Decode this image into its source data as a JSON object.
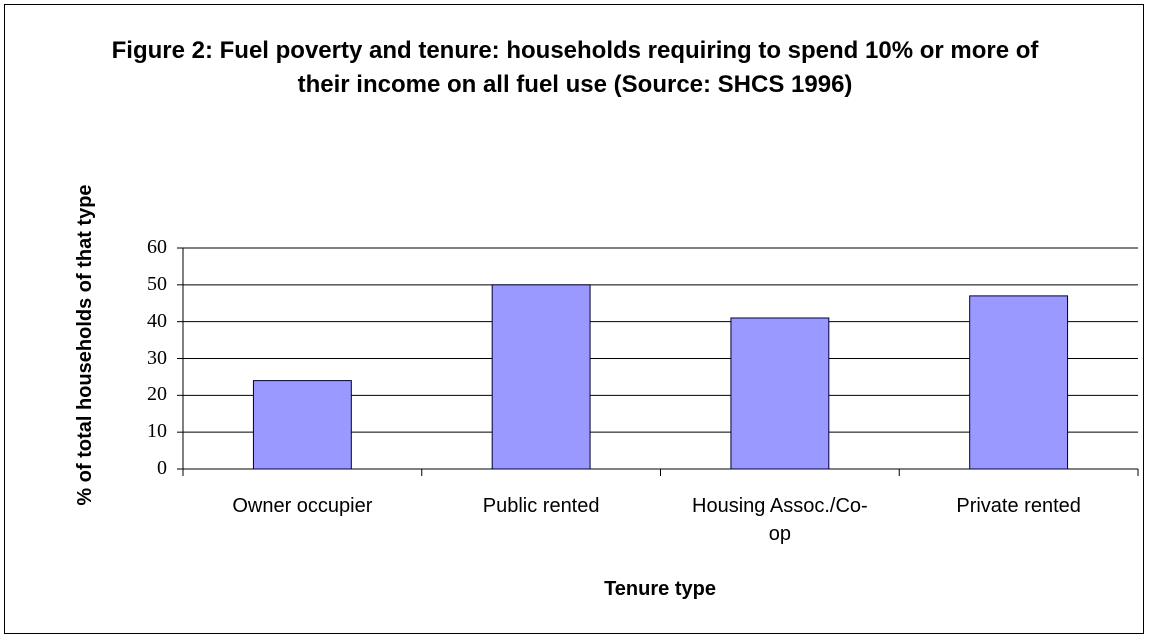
{
  "chart_data": {
    "type": "bar",
    "title": "Figure 2: Fuel poverty and tenure: households requiring to spend 10% or more of their income on all fuel use (Source: SHCS 1996)",
    "x_label": "Tenure type",
    "y_label": "% of total households of that type",
    "categories": [
      "Owner occupier",
      "Public rented",
      "Housing Assoc./Co-op",
      "Private rented"
    ],
    "values": [
      24,
      50,
      41,
      47
    ],
    "color": "#9999ff",
    "ylim": [
      0,
      60
    ],
    "yticks": [
      0,
      10,
      20,
      30,
      40,
      50,
      60
    ],
    "grid": true
  }
}
